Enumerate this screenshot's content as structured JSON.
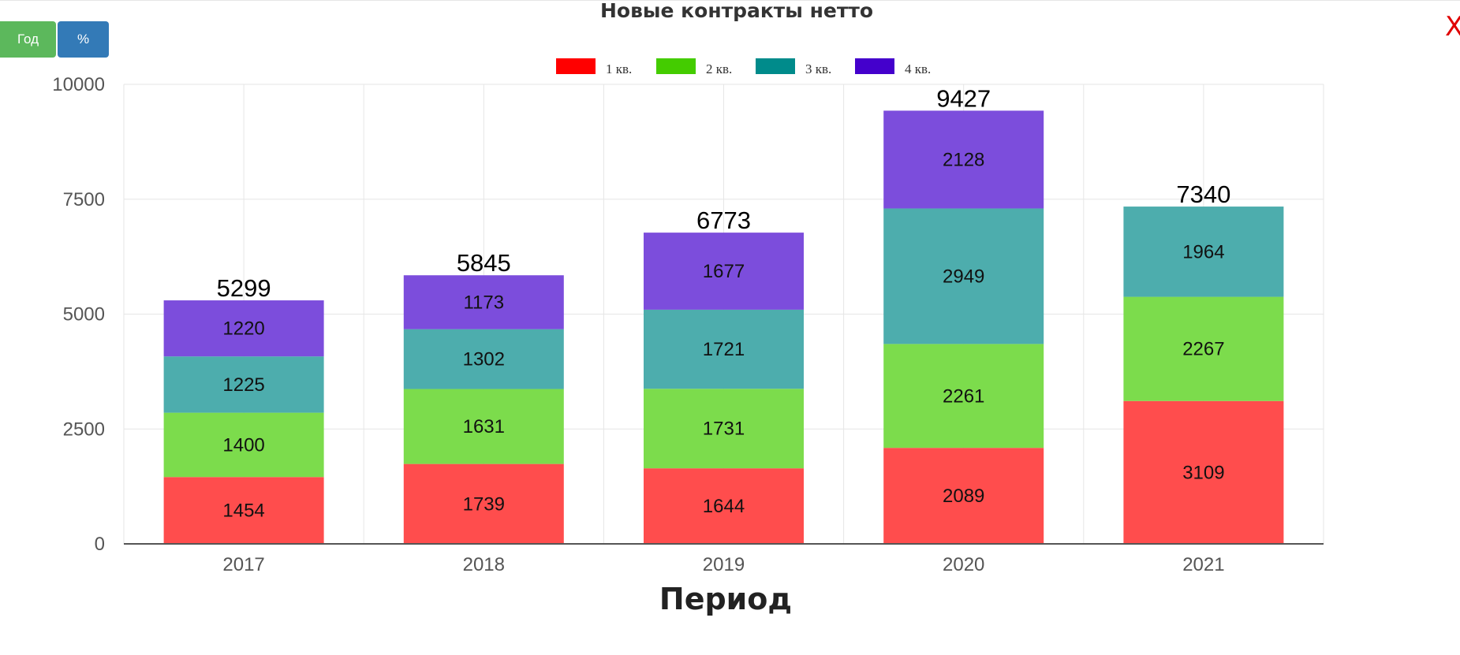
{
  "toolbar": {
    "year_label": "Год",
    "percent_label": "%",
    "close_label": "X"
  },
  "colors": {
    "legend": [
      "#ff0000",
      "#44cc00",
      "#008b8b",
      "#4400cc"
    ],
    "bars": [
      "#ff4d4d",
      "#7cdc4c",
      "#4dadad",
      "#7c4ddc"
    ]
  },
  "chart_data": {
    "type": "bar",
    "stacked": true,
    "title": "Новые контракты нетто",
    "xlabel": "Период",
    "ylabel": "",
    "categories": [
      "2017",
      "2018",
      "2019",
      "2020",
      "2021"
    ],
    "series": [
      {
        "name": "1 кв.",
        "values": [
          1454,
          1739,
          1644,
          2089,
          3109
        ]
      },
      {
        "name": "2 кв.",
        "values": [
          1400,
          1631,
          1731,
          2261,
          2267
        ]
      },
      {
        "name": "3 кв.",
        "values": [
          1225,
          1302,
          1721,
          2949,
          1964
        ]
      },
      {
        "name": "4 кв.",
        "values": [
          1220,
          1173,
          1677,
          2128,
          null
        ]
      }
    ],
    "totals": [
      5299,
      5845,
      6773,
      9427,
      7340
    ],
    "ylim": [
      0,
      10000
    ],
    "yticks": [
      0,
      2500,
      5000,
      7500,
      10000
    ],
    "grid": true,
    "legend_position": "top-center"
  }
}
